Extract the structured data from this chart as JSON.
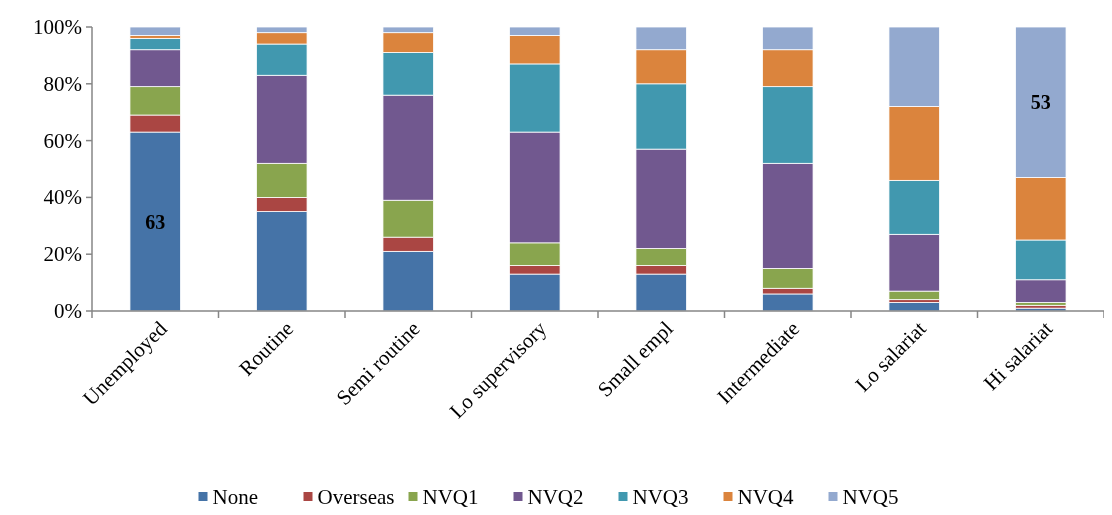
{
  "chart_data": {
    "type": "bar",
    "stacked": true,
    "categories": [
      "Unemployed",
      "Routine",
      "Semi routine",
      "Lo supervisory",
      "Small empl",
      "Intermediate",
      "Lo salariat",
      "Hi salariat"
    ],
    "series": [
      {
        "name": "None",
        "color": "#4573a7",
        "values": [
          63,
          35,
          21,
          13,
          13,
          6,
          3,
          1
        ],
        "value_labels": [
          "63",
          null,
          null,
          null,
          null,
          null,
          null,
          null
        ]
      },
      {
        "name": "Overseas",
        "color": "#aa4643",
        "values": [
          6,
          5,
          5,
          3,
          3,
          2,
          1,
          1
        ]
      },
      {
        "name": "NVQ1",
        "color": "#89a54e",
        "values": [
          10,
          12,
          13,
          8,
          6,
          7,
          3,
          1
        ]
      },
      {
        "name": "NVQ2",
        "color": "#71588f",
        "values": [
          13,
          31,
          37,
          39,
          35,
          37,
          20,
          8
        ]
      },
      {
        "name": "NVQ3",
        "color": "#4198af",
        "values": [
          4,
          11,
          15,
          24,
          23,
          27,
          19,
          14
        ]
      },
      {
        "name": "NVQ4",
        "color": "#db843d",
        "values": [
          1,
          4,
          7,
          10,
          12,
          13,
          26,
          22
        ]
      },
      {
        "name": "NVQ5",
        "color": "#93a9cf",
        "values": [
          3,
          2,
          2,
          3,
          8,
          8,
          28,
          53
        ],
        "value_labels": [
          null,
          null,
          null,
          null,
          null,
          null,
          null,
          "53"
        ]
      }
    ],
    "ylim": [
      0,
      100
    ],
    "yticks": [
      {
        "value": 0,
        "label": "0%"
      },
      {
        "value": 20,
        "label": "20%"
      },
      {
        "value": 40,
        "label": "40%"
      },
      {
        "value": 60,
        "label": "60%"
      },
      {
        "value": 80,
        "label": "80%"
      },
      {
        "value": 100,
        "label": "100%"
      }
    ],
    "grid": false,
    "legend": "bottom"
  }
}
